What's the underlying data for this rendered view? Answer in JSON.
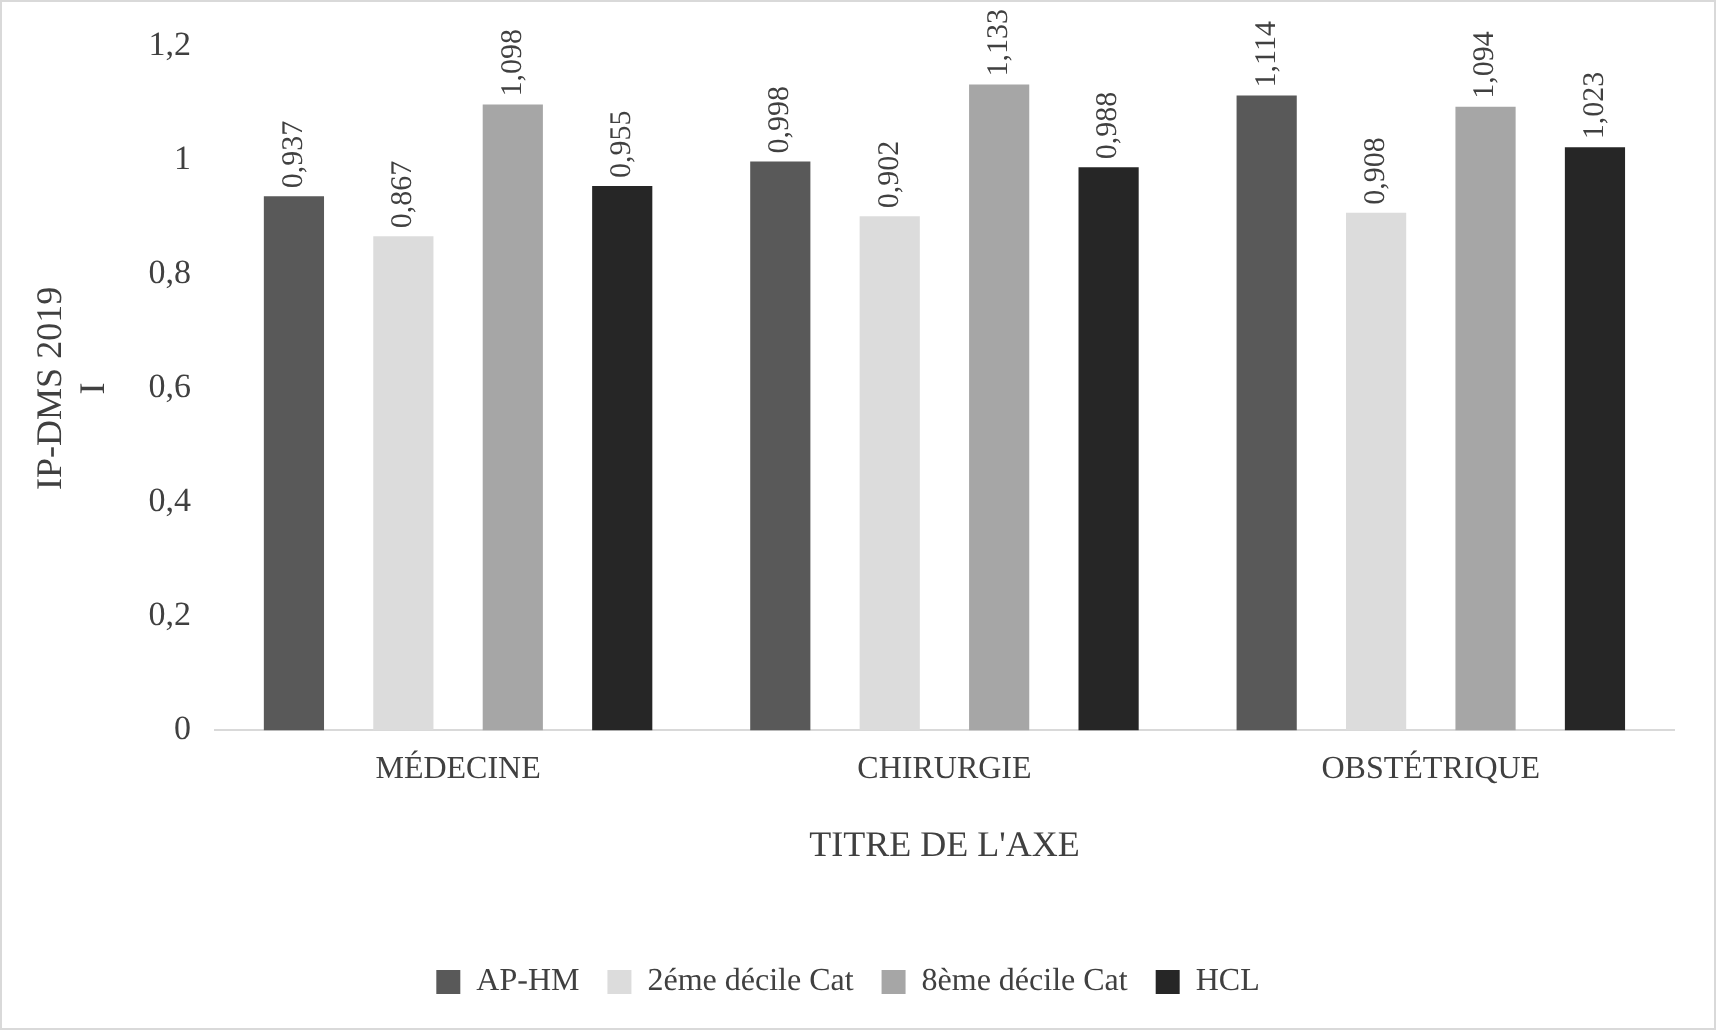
{
  "chart_data": {
    "type": "bar",
    "ylabel": "IP-DMS 2019\nI",
    "xlabel": "TITRE DE L'AXE",
    "categories": [
      "MÉDECINE",
      "CHIRURGIE",
      "OBSTÉTRIQUE"
    ],
    "series": [
      {
        "name": "AP-HM",
        "color": "#595959",
        "values": [
          0.937,
          0.998,
          1.114
        ],
        "value_labels": [
          "0,937",
          "0,998",
          "1,114"
        ]
      },
      {
        "name": "2éme décile Cat",
        "color": "#dcdcdc",
        "values": [
          0.867,
          0.902,
          0.908
        ],
        "value_labels": [
          "0,867",
          "0,902",
          "0,908"
        ]
      },
      {
        "name": "8ème décile Cat",
        "color": "#a6a6a6",
        "values": [
          1.098,
          1.133,
          1.094
        ],
        "value_labels": [
          "1,098",
          "1,133",
          "1,094"
        ]
      },
      {
        "name": "HCL",
        "color": "#262626",
        "values": [
          0.955,
          0.988,
          1.023
        ],
        "value_labels": [
          "0,955",
          "0,988",
          "1,023"
        ]
      }
    ],
    "ylim": [
      0,
      1.2
    ],
    "yticks": [
      0,
      {
        "value": 0.2,
        "label": "0,2"
      },
      {
        "value": 0.4,
        "label": "0,4"
      },
      {
        "value": 0.6,
        "label": "0,6"
      },
      {
        "value": 0.8,
        "label": "0,8"
      },
      1,
      {
        "value": 1.2,
        "label": "1,2"
      }
    ],
    "grid": false,
    "legend": "bottom"
  }
}
